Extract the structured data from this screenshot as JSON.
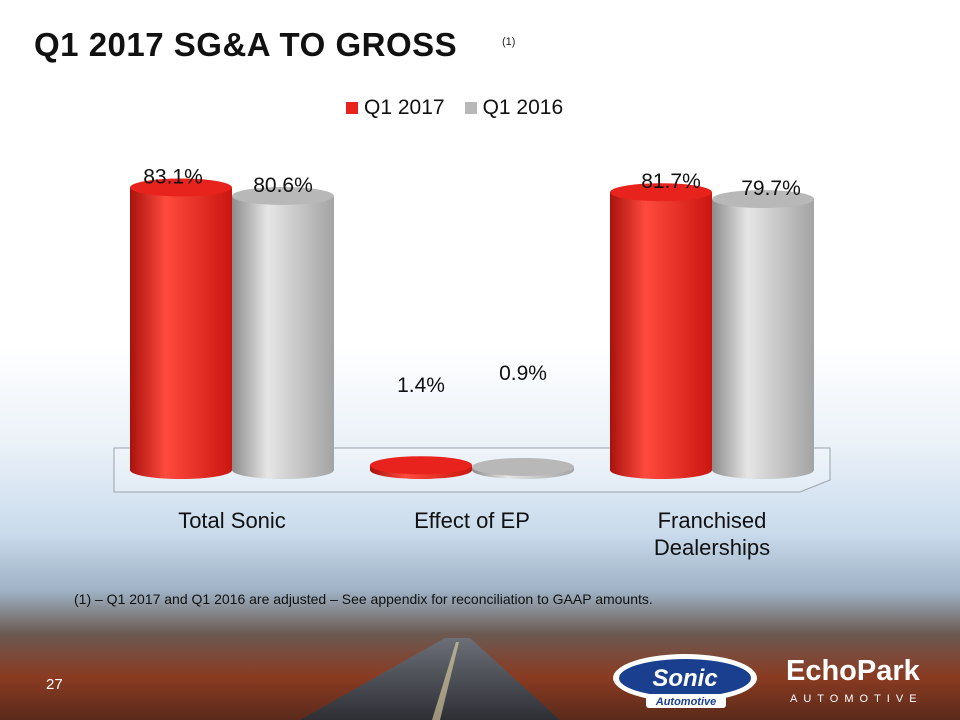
{
  "slide": {
    "title": "Q1 2017 SG&A TO GROSS",
    "title_sup": "(1)",
    "footnote": "(1) – Q1 2017 and Q1 2016 are adjusted – See appendix for reconciliation to GAAP amounts.",
    "page_number": "27"
  },
  "logos": {
    "sonic_line1": "Sonic",
    "sonic_line2": "Automotive",
    "echo_line1": "EchoPark",
    "echo_line2": "AUTOMOTIVE"
  },
  "colors": {
    "q1_2017": "#e8231d",
    "q1_2016": "#b8b8b8"
  },
  "chart_data": {
    "type": "bar",
    "categories": [
      "Total Sonic",
      "Effect of EP",
      "Franchised Dealerships"
    ],
    "series": [
      {
        "name": "Q1 2017",
        "values": [
          83.1,
          1.4,
          81.7
        ],
        "labels": [
          "83.1%",
          "1.4%",
          "81.7%"
        ]
      },
      {
        "name": "Q1 2016",
        "values": [
          80.6,
          0.9,
          79.7
        ],
        "labels": [
          "80.6%",
          "0.9%",
          "79.7%"
        ]
      }
    ],
    "legend": "top",
    "grid": false,
    "ylim": [
      0,
      100
    ]
  }
}
